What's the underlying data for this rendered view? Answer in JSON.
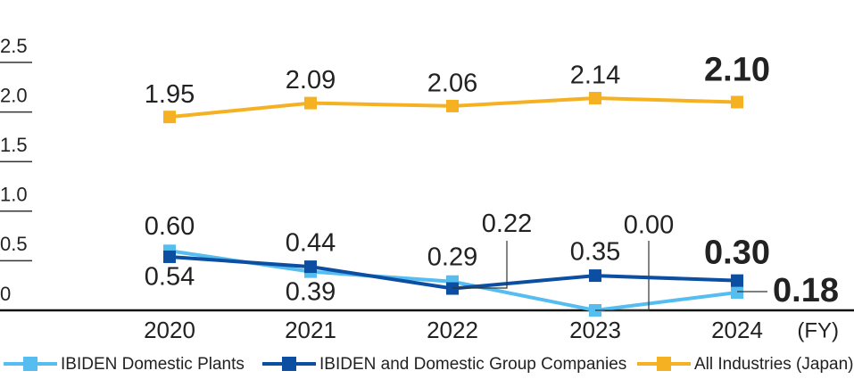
{
  "chart_data": {
    "type": "line",
    "x_label": "(FY)",
    "categories": [
      "2020",
      "2021",
      "2022",
      "2023",
      "2024"
    ],
    "series": [
      {
        "name": "IBIDEN Domestic Plants",
        "color": "#55bdf0",
        "values": [
          0.6,
          0.39,
          0.29,
          0.0,
          0.18
        ],
        "value_labels": [
          "0.60",
          "0.39",
          "0.29",
          "0.00",
          "0.18"
        ]
      },
      {
        "name": "IBIDEN and Domestic Group Companies",
        "color": "#0b4ea2",
        "values": [
          0.54,
          0.44,
          0.22,
          0.35,
          0.3
        ],
        "value_labels": [
          "0.54",
          "0.44",
          "0.22",
          "0.35",
          "0.30"
        ]
      },
      {
        "name": "All Industries (Japan)",
        "color": "#f5b121",
        "values": [
          1.95,
          2.09,
          2.06,
          2.14,
          2.1
        ],
        "value_labels": [
          "1.95",
          "2.09",
          "2.06",
          "2.14",
          "2.10"
        ]
      }
    ],
    "ylim": [
      0,
      2.5
    ],
    "yticks": [
      0,
      {
        "value": 0.5,
        "label": "0.5"
      },
      {
        "value": 1.0,
        "label": "1.0"
      },
      1.5,
      {
        "value": 2.0,
        "label": "2.0"
      },
      2.5
    ]
  }
}
